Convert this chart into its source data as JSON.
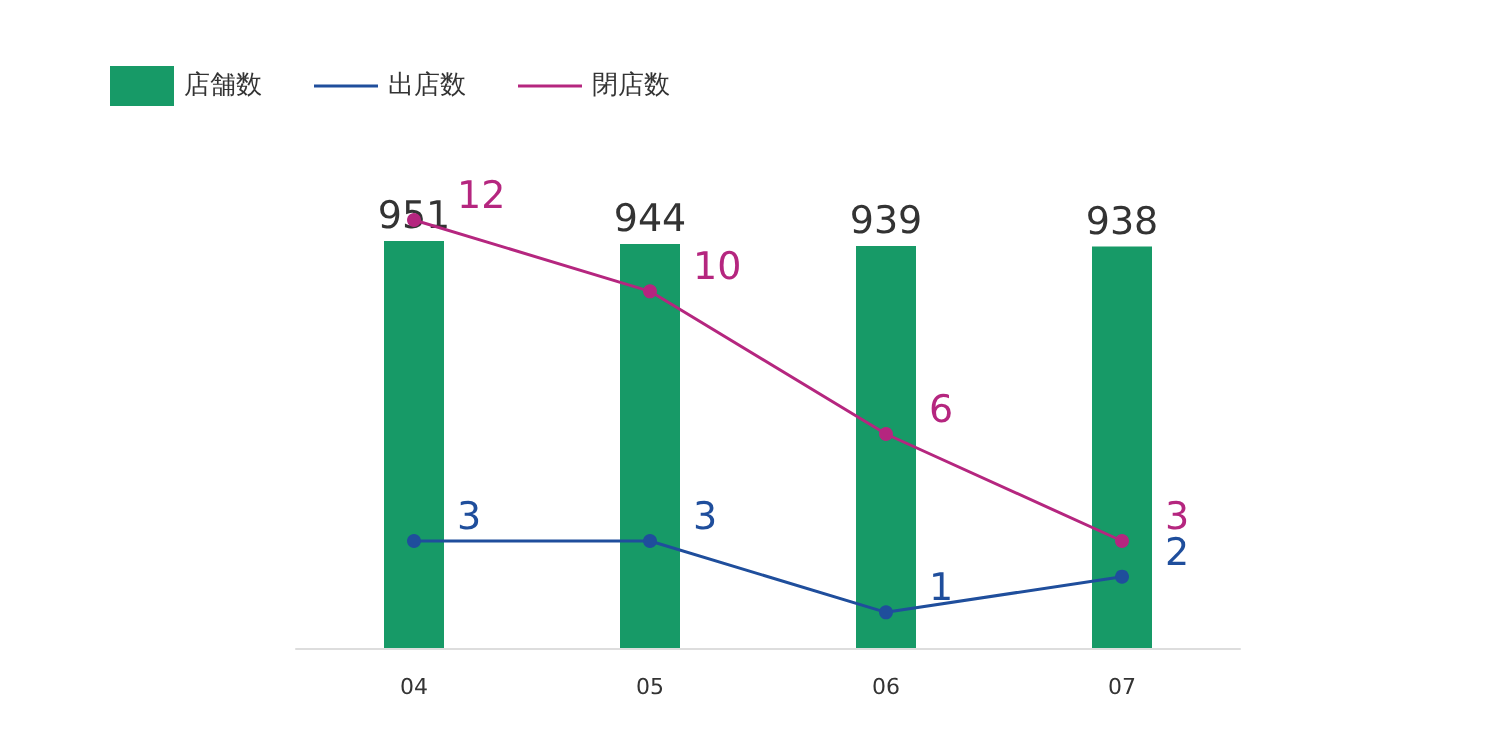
{
  "chart_data": {
    "type": "bar",
    "categories": [
      "04",
      "05",
      "06",
      "07"
    ],
    "series": [
      {
        "name": "店舗数",
        "color": "#179a67",
        "values": [
          951,
          944,
          939,
          938
        ]
      },
      {
        "name": "出店数",
        "type": "line",
        "axis": "y2",
        "color": "#1f4e9c",
        "values": [
          3,
          3,
          1,
          2
        ]
      },
      {
        "name": "閉店数",
        "type": "line",
        "axis": "y2",
        "color": "#b5267f",
        "values": [
          12,
          10,
          6,
          3
        ]
      }
    ],
    "tick_labels": "x",
    "data_labels": true,
    "legend": "top left",
    "grid": false,
    "marker": "circle"
  }
}
